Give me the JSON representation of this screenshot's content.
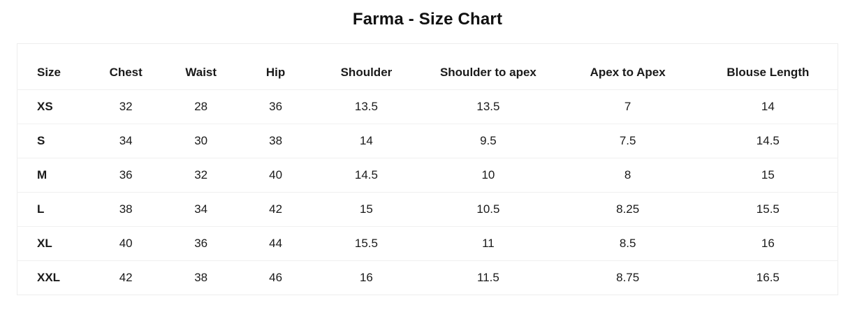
{
  "page": {
    "title": "Farma - Size Chart"
  },
  "colors": {
    "background": "#ffffff",
    "text": "#1a1a1a",
    "table_border": "#ededed",
    "row_divider": "#f0f0f0"
  },
  "chart_data": {
    "type": "table",
    "title": "Farma - Size Chart",
    "columns": [
      "Size",
      "Chest",
      "Waist",
      "Hip",
      "Shoulder",
      "Shoulder to apex",
      "Apex to Apex",
      "Blouse Length"
    ],
    "rows": [
      [
        "XS",
        "32",
        "28",
        "36",
        "13.5",
        "13.5",
        "7",
        "14"
      ],
      [
        "S",
        "34",
        "30",
        "38",
        "14",
        "9.5",
        "7.5",
        "14.5"
      ],
      [
        "M",
        "36",
        "32",
        "40",
        "14.5",
        "10",
        "8",
        "15"
      ],
      [
        "L",
        "38",
        "34",
        "42",
        "15",
        "10.5",
        "8.25",
        "15.5"
      ],
      [
        "XL",
        "40",
        "36",
        "44",
        "15.5",
        "11",
        "8.5",
        "16"
      ],
      [
        "XXL",
        "42",
        "38",
        "46",
        "16",
        "11.5",
        "8.75",
        "16.5"
      ]
    ]
  }
}
